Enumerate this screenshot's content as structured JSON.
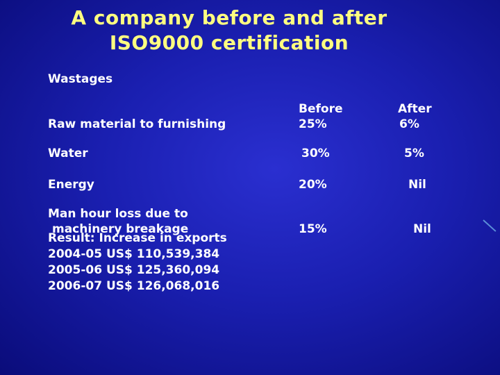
{
  "title": {
    "line1": "A company before and after",
    "line2": "ISO9000 certification"
  },
  "section_heading": "Wastages",
  "table": {
    "columns": [
      "Before",
      "After"
    ],
    "rows": [
      {
        "label": "Raw material to furnishing",
        "before": "25%",
        "after": "6%"
      },
      {
        "label": "Water",
        "before": "30%",
        "after": "5%"
      },
      {
        "label": "Energy",
        "before": "20%",
        "after": "Nil"
      },
      {
        "label_lines": [
          "Man hour loss due to",
          "machinery breakage"
        ],
        "before": "15%",
        "after": "Nil"
      }
    ]
  },
  "result": {
    "heading": "Result: Increase in exports",
    "lines": [
      "2004-05 US$ 110,539,384",
      "2005-06 US$ 125,360,094",
      "2006-07 US$ 126,068,016"
    ]
  },
  "colors": {
    "title": "#ffff80",
    "text": "#ffffff",
    "background": "#1a1fb0"
  }
}
